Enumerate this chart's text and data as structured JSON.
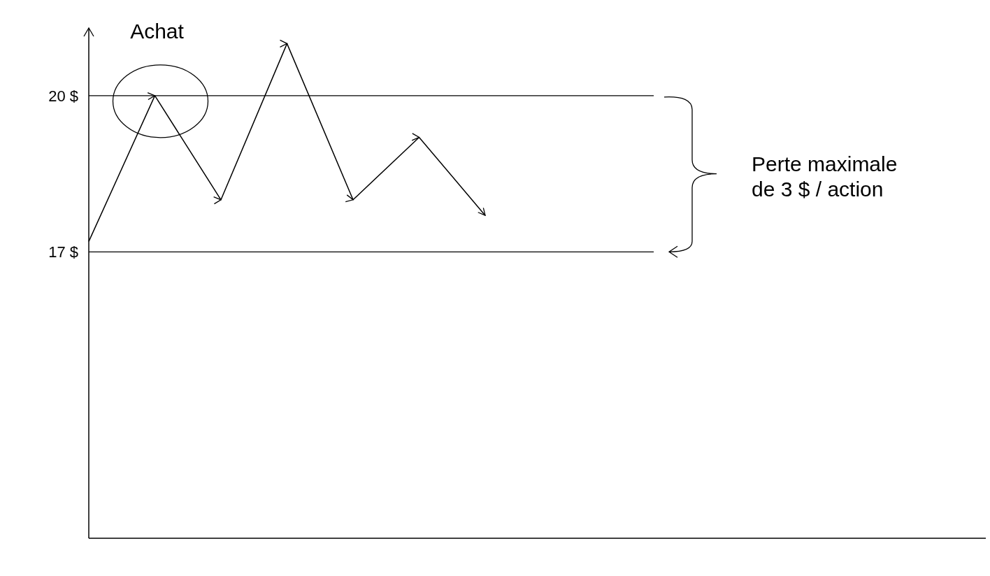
{
  "chart_data": {
    "type": "line",
    "categories": [
      null,
      null,
      null,
      null,
      null,
      null,
      null
    ],
    "series": [
      {
        "color": "#000000",
        "values": [
          17.2,
          20,
          18,
          21,
          18,
          19.2,
          17.7
        ]
      }
    ],
    "ylim": [
      11.5,
      21.3
    ],
    "yticks": [
      {
        "value": 20,
        "label": "20 $"
      },
      {
        "value": 17,
        "label": "17 $"
      }
    ],
    "ref_lines": [
      {
        "axis": "y",
        "value": 20,
        "color": "#000000"
      },
      {
        "axis": "y",
        "value": 17,
        "color": "#000000"
      }
    ],
    "annotations": [
      {
        "text": "Achat",
        "y": 20
      },
      "Perte maximale de 3 $ / action"
    ],
    "grid": false,
    "marker": "none",
    "line_style": "solid"
  }
}
